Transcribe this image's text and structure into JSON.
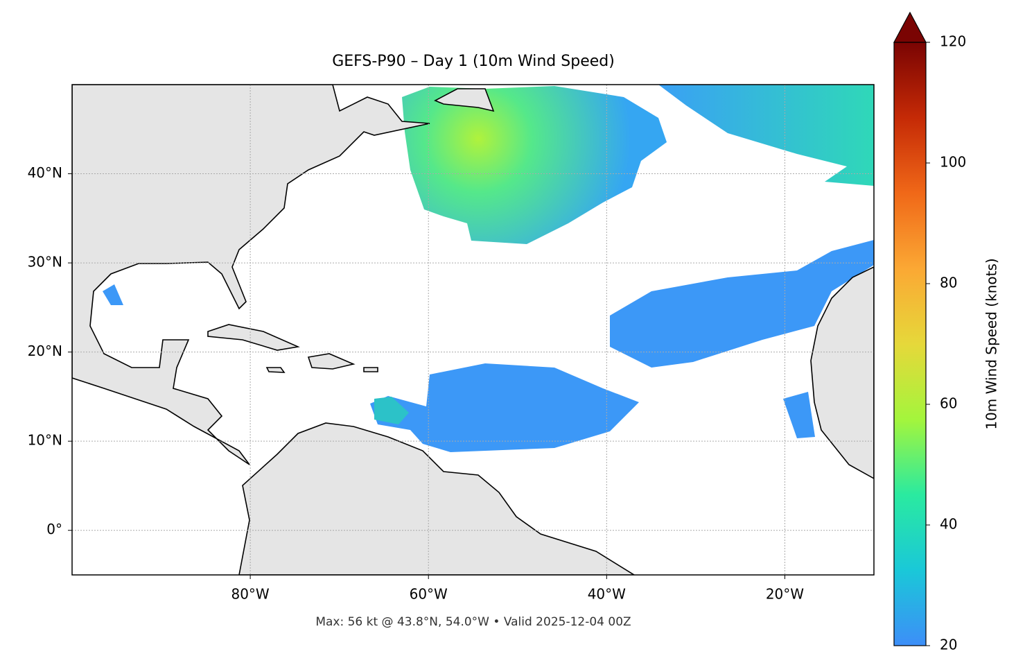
{
  "chart_data": {
    "type": "map",
    "title": "GEFS-P90 – Day 1 (10m Wind Speed)",
    "xlim": [
      -100,
      -10
    ],
    "ylim": [
      -5,
      50
    ],
    "xticks": [
      {
        "value": -80,
        "label": "80°W"
      },
      {
        "value": -60,
        "label": "60°W"
      },
      {
        "value": -40,
        "label": "40°W"
      },
      {
        "value": -20,
        "label": "20°W"
      }
    ],
    "yticks": [
      {
        "value": 0,
        "label": "0°"
      },
      {
        "value": 10,
        "label": "10°N"
      },
      {
        "value": 20,
        "label": "20°N"
      },
      {
        "value": 30,
        "label": "30°N"
      },
      {
        "value": 40,
        "label": "40°N"
      }
    ],
    "grid": true,
    "footer": "Max: 56 kt @ 43.8°N, 54.0°W • Valid 2025-12-04 00Z",
    "colorbar": {
      "label": "10m Wind Speed (knots)",
      "lim": [
        20,
        120
      ],
      "ticks": [
        20,
        40,
        60,
        80,
        100,
        120
      ],
      "extend": "max",
      "colors": [
        "#3d8ef8",
        "#1ac8d8",
        "#2aeaa0",
        "#a4f53c",
        "#e6d83a",
        "#fba834",
        "#f06818",
        "#c52a06",
        "#7a0403"
      ]
    }
  }
}
